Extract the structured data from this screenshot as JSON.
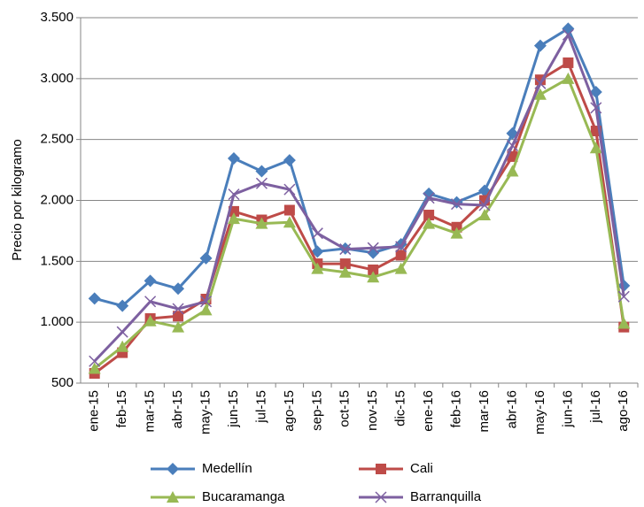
{
  "chart_data": {
    "type": "line",
    "y_label": "Precio por kilogramo",
    "categories": [
      "ene-15",
      "feb-15",
      "mar-15",
      "abr-15",
      "may-15",
      "jun-15",
      "jul-15",
      "ago-15",
      "sep-15",
      "oct-15",
      "nov-15",
      "dic-15",
      "ene-16",
      "feb-16",
      "mar-16",
      "abr-16",
      "may-16",
      "jun-16",
      "jul-16",
      "ago-16"
    ],
    "series": [
      {
        "name": "Medellín",
        "color": "#4a7ebb",
        "marker": "diamond",
        "values": [
          1195,
          1135,
          1340,
          1275,
          1525,
          2345,
          2240,
          2330,
          1580,
          1605,
          1570,
          1640,
          2055,
          1985,
          2080,
          2550,
          3270,
          3410,
          2890,
          1300
        ]
      },
      {
        "name": "Cali",
        "color": "#be4b48",
        "marker": "square",
        "values": [
          580,
          750,
          1030,
          1050,
          1190,
          1910,
          1840,
          1920,
          1480,
          1480,
          1430,
          1550,
          1880,
          1780,
          2000,
          2360,
          2990,
          3130,
          2570,
          960
        ]
      },
      {
        "name": "Bucaramanga",
        "color": "#98b954",
        "marker": "triangle",
        "values": [
          620,
          800,
          1010,
          960,
          1100,
          1850,
          1810,
          1820,
          1440,
          1410,
          1370,
          1440,
          1810,
          1730,
          1880,
          2240,
          2870,
          3000,
          2430,
          990
        ]
      },
      {
        "name": "Barranquilla",
        "color": "#7d60a0",
        "marker": "x",
        "values": [
          680,
          920,
          1170,
          1110,
          1170,
          2050,
          2140,
          2090,
          1730,
          1600,
          1610,
          1620,
          2020,
          1970,
          1960,
          2450,
          2960,
          3360,
          2760,
          1210
        ]
      }
    ],
    "ylim": [
      500,
      3500
    ],
    "yticks": [
      500,
      {
        "value": 1000,
        "label": "1.000"
      },
      {
        "value": 1500,
        "label": "1.500"
      },
      {
        "value": 2000,
        "label": "2.000"
      },
      {
        "value": 2500,
        "label": "2.500"
      },
      {
        "value": 3000,
        "label": "3.000"
      },
      {
        "value": 3500,
        "label": "3.500"
      }
    ],
    "grid": true,
    "legend": "bottom"
  }
}
